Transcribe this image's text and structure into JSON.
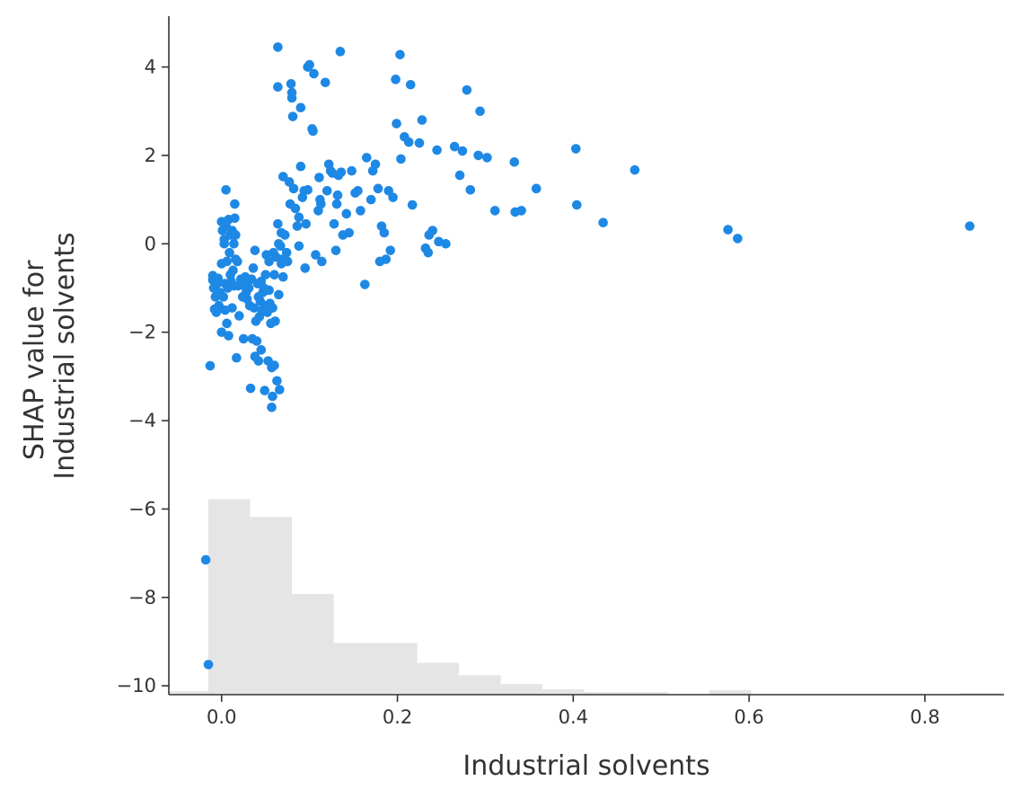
{
  "chart_data": {
    "type": "scatter",
    "xlabel": "Industrial solvents",
    "ylabel": "SHAP value for\nIndustrial solvents",
    "xlim": [
      -0.06,
      0.89
    ],
    "ylim": [
      -10.2,
      5.15
    ],
    "xticks": [
      0.0,
      0.2,
      0.4,
      0.6,
      0.8
    ],
    "xtick_labels": [
      "0.0",
      "0.2",
      "0.4",
      "0.6",
      "0.8"
    ],
    "yticks": [
      4,
      2,
      0,
      -2,
      -4,
      -6,
      -8,
      -10
    ],
    "ytick_labels": [
      "4",
      "2",
      "0",
      "−2",
      "−4",
      "−6",
      "−8",
      "−10"
    ],
    "grid": false,
    "colors": {
      "points": "#1e88e5",
      "histogram": "#e5e5e5",
      "axes": "#333333"
    },
    "histogram": {
      "bin_edges": [
        -0.0625,
        -0.015,
        0.0325,
        0.08,
        0.1275,
        0.175,
        0.2225,
        0.27,
        0.3175,
        0.365,
        0.4125,
        0.46,
        0.5075,
        0.555,
        0.6025,
        0.65,
        0.6975,
        0.745,
        0.7925,
        0.84,
        0.8875
      ],
      "values": [
        -10.12,
        -5.78,
        -6.18,
        -7.92,
        -9.03,
        -9.03,
        -9.48,
        -9.76,
        -9.96,
        -10.08,
        -10.14,
        -10.14,
        -10.2,
        -10.1,
        -10.2,
        -10.2,
        -10.2,
        -10.2,
        -10.2,
        -10.16
      ]
    },
    "points": [
      [
        -0.018,
        -7.15
      ],
      [
        -0.015,
        -9.52
      ],
      [
        -0.013,
        -2.76
      ],
      [
        -0.01,
        -0.72
      ],
      [
        -0.01,
        -0.82
      ],
      [
        -0.009,
        -1.0
      ],
      [
        -0.008,
        -1.48
      ],
      [
        -0.007,
        -1.2
      ],
      [
        -0.006,
        -1.55
      ],
      [
        -0.005,
        -0.9
      ],
      [
        -0.004,
        -0.78
      ],
      [
        -0.003,
        -1.4
      ],
      [
        -0.002,
        -1.1
      ],
      [
        0.0,
        -0.45
      ],
      [
        0.0,
        -2.0
      ],
      [
        0.0,
        0.5
      ],
      [
        0.001,
        0.3
      ],
      [
        0.002,
        -1.2
      ],
      [
        0.003,
        0.1
      ],
      [
        0.003,
        0.0
      ],
      [
        0.004,
        -0.9
      ],
      [
        0.004,
        -1.5
      ],
      [
        0.005,
        1.22
      ],
      [
        0.005,
        0.4
      ],
      [
        0.006,
        -1.8
      ],
      [
        0.006,
        -0.4
      ],
      [
        0.007,
        -1.0
      ],
      [
        0.008,
        0.55
      ],
      [
        0.008,
        -2.08
      ],
      [
        0.009,
        -0.2
      ],
      [
        0.01,
        0.2
      ],
      [
        0.01,
        -0.7
      ],
      [
        0.011,
        -0.85
      ],
      [
        0.012,
        0.3
      ],
      [
        0.012,
        -1.45
      ],
      [
        0.013,
        -0.6
      ],
      [
        0.014,
        0.0
      ],
      [
        0.014,
        -0.95
      ],
      [
        0.015,
        0.58
      ],
      [
        0.015,
        0.9
      ],
      [
        0.016,
        -0.35
      ],
      [
        0.016,
        0.2
      ],
      [
        0.017,
        -2.58
      ],
      [
        0.018,
        -0.4
      ],
      [
        0.019,
        -0.95
      ],
      [
        0.02,
        -1.63
      ],
      [
        0.022,
        -0.8
      ],
      [
        0.024,
        -1.2
      ],
      [
        0.025,
        -2.15
      ],
      [
        0.026,
        -0.95
      ],
      [
        0.027,
        -0.75
      ],
      [
        0.028,
        -1.1
      ],
      [
        0.029,
        -1.25
      ],
      [
        0.03,
        -0.85
      ],
      [
        0.031,
        -1.0
      ],
      [
        0.032,
        -1.4
      ],
      [
        0.033,
        -3.27
      ],
      [
        0.034,
        -0.8
      ],
      [
        0.035,
        -2.15
      ],
      [
        0.036,
        -0.55
      ],
      [
        0.037,
        -1.45
      ],
      [
        0.038,
        -2.55
      ],
      [
        0.038,
        -0.15
      ],
      [
        0.039,
        -1.75
      ],
      [
        0.04,
        -2.2
      ],
      [
        0.041,
        -0.9
      ],
      [
        0.042,
        -2.65
      ],
      [
        0.042,
        -1.2
      ],
      [
        0.043,
        -1.65
      ],
      [
        0.044,
        -1.3
      ],
      [
        0.045,
        -0.85
      ],
      [
        0.045,
        -2.4
      ],
      [
        0.046,
        -1.5
      ],
      [
        0.047,
        -1.1
      ],
      [
        0.048,
        -1.0
      ],
      [
        0.049,
        -3.32
      ],
      [
        0.05,
        -0.7
      ],
      [
        0.05,
        -1.4
      ],
      [
        0.051,
        -0.25
      ],
      [
        0.052,
        -1.55
      ],
      [
        0.053,
        -2.65
      ],
      [
        0.054,
        -1.05
      ],
      [
        0.054,
        -0.4
      ],
      [
        0.055,
        -1.35
      ],
      [
        0.056,
        -1.8
      ],
      [
        0.057,
        -3.7
      ],
      [
        0.057,
        -2.8
      ],
      [
        0.058,
        -3.45
      ],
      [
        0.058,
        -1.45
      ],
      [
        0.059,
        -0.2
      ],
      [
        0.06,
        -0.7
      ],
      [
        0.06,
        -2.75
      ],
      [
        0.061,
        -1.75
      ],
      [
        0.062,
        -0.3
      ],
      [
        0.063,
        -3.1
      ],
      [
        0.064,
        0.45
      ],
      [
        0.064,
        4.45
      ],
      [
        0.064,
        3.55
      ],
      [
        0.065,
        0.0
      ],
      [
        0.065,
        -1.15
      ],
      [
        0.066,
        -3.3
      ],
      [
        0.067,
        -0.05
      ],
      [
        0.068,
        -0.45
      ],
      [
        0.068,
        0.25
      ],
      [
        0.069,
        -0.35
      ],
      [
        0.07,
        -0.75
      ],
      [
        0.07,
        1.52
      ],
      [
        0.072,
        0.2
      ],
      [
        0.074,
        -0.2
      ],
      [
        0.075,
        -0.4
      ],
      [
        0.077,
        1.4
      ],
      [
        0.078,
        0.9
      ],
      [
        0.079,
        3.62
      ],
      [
        0.08,
        3.42
      ],
      [
        0.08,
        3.3
      ],
      [
        0.081,
        2.88
      ],
      [
        0.082,
        1.25
      ],
      [
        0.084,
        0.8
      ],
      [
        0.086,
        0.4
      ],
      [
        0.088,
        0.6
      ],
      [
        0.088,
        -0.05
      ],
      [
        0.09,
        3.08
      ],
      [
        0.09,
        1.75
      ],
      [
        0.092,
        1.05
      ],
      [
        0.094,
        1.2
      ],
      [
        0.095,
        -0.55
      ],
      [
        0.096,
        0.45
      ],
      [
        0.098,
        4.0
      ],
      [
        0.098,
        1.22
      ],
      [
        0.1,
        4.05
      ],
      [
        0.103,
        2.6
      ],
      [
        0.104,
        2.55
      ],
      [
        0.105,
        3.85
      ],
      [
        0.107,
        -0.25
      ],
      [
        0.11,
        0.75
      ],
      [
        0.111,
        1.5
      ],
      [
        0.112,
        1.0
      ],
      [
        0.113,
        0.9
      ],
      [
        0.114,
        -0.4
      ],
      [
        0.118,
        3.65
      ],
      [
        0.12,
        1.2
      ],
      [
        0.122,
        1.8
      ],
      [
        0.124,
        1.65
      ],
      [
        0.126,
        1.6
      ],
      [
        0.128,
        0.45
      ],
      [
        0.13,
        -0.15
      ],
      [
        0.131,
        0.9
      ],
      [
        0.132,
        1.1
      ],
      [
        0.133,
        1.55
      ],
      [
        0.135,
        4.35
      ],
      [
        0.136,
        1.62
      ],
      [
        0.138,
        0.2
      ],
      [
        0.142,
        0.68
      ],
      [
        0.145,
        0.25
      ],
      [
        0.148,
        1.65
      ],
      [
        0.152,
        1.15
      ],
      [
        0.155,
        1.2
      ],
      [
        0.158,
        0.75
      ],
      [
        0.163,
        -0.92
      ],
      [
        0.165,
        1.95
      ],
      [
        0.17,
        1.0
      ],
      [
        0.172,
        1.65
      ],
      [
        0.175,
        1.8
      ],
      [
        0.178,
        1.25
      ],
      [
        0.18,
        -0.4
      ],
      [
        0.182,
        0.4
      ],
      [
        0.185,
        0.25
      ],
      [
        0.187,
        -0.35
      ],
      [
        0.19,
        1.2
      ],
      [
        0.192,
        -0.15
      ],
      [
        0.195,
        1.05
      ],
      [
        0.198,
        3.72
      ],
      [
        0.199,
        2.72
      ],
      [
        0.203,
        4.28
      ],
      [
        0.204,
        1.92
      ],
      [
        0.208,
        2.42
      ],
      [
        0.213,
        2.3
      ],
      [
        0.215,
        3.6
      ],
      [
        0.217,
        0.88
      ],
      [
        0.225,
        2.28
      ],
      [
        0.228,
        2.8
      ],
      [
        0.232,
        -0.1
      ],
      [
        0.235,
        -0.2
      ],
      [
        0.236,
        0.2
      ],
      [
        0.24,
        0.3
      ],
      [
        0.245,
        2.12
      ],
      [
        0.247,
        0.05
      ],
      [
        0.255,
        0.0
      ],
      [
        0.265,
        2.2
      ],
      [
        0.271,
        1.55
      ],
      [
        0.274,
        2.1
      ],
      [
        0.279,
        3.48
      ],
      [
        0.283,
        1.22
      ],
      [
        0.292,
        2.0
      ],
      [
        0.294,
        3.0
      ],
      [
        0.302,
        1.95
      ],
      [
        0.311,
        0.75
      ],
      [
        0.333,
        1.85
      ],
      [
        0.334,
        0.72
      ],
      [
        0.341,
        0.75
      ],
      [
        0.358,
        1.25
      ],
      [
        0.403,
        2.15
      ],
      [
        0.404,
        0.88
      ],
      [
        0.434,
        0.48
      ],
      [
        0.47,
        1.67
      ],
      [
        0.576,
        0.32
      ],
      [
        0.587,
        0.12
      ],
      [
        0.851,
        0.4
      ]
    ]
  }
}
